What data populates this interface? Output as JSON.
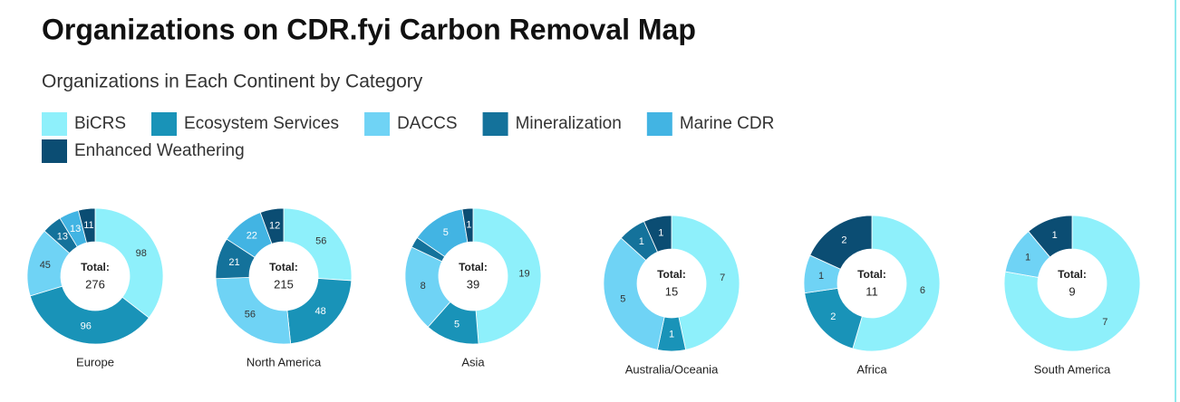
{
  "chart_data": {
    "type": "donut",
    "title": "Organizations on CDR.fyi Carbon Removal Map",
    "subtitle": "Organizations in Each Continent by Category",
    "total_label": "Total:",
    "series": [
      {
        "name": "BiCRS",
        "color": "#8ef0fb"
      },
      {
        "name": "Ecosystem Services",
        "color": "#1993b8"
      },
      {
        "name": "DACCS",
        "color": "#6fd3f5"
      },
      {
        "name": "Mineralization",
        "color": "#14729b"
      },
      {
        "name": "Marine CDR",
        "color": "#42b4e3"
      },
      {
        "name": "Enhanced Weathering",
        "color": "#0b4d73"
      }
    ],
    "groups": [
      {
        "name": "Europe",
        "total": 276,
        "values": [
          98,
          96,
          45,
          13,
          13,
          11
        ]
      },
      {
        "name": "North America",
        "total": 215,
        "values": [
          56,
          48,
          56,
          21,
          22,
          12
        ]
      },
      {
        "name": "Asia",
        "total": 39,
        "values": [
          19,
          5,
          8,
          1,
          5,
          1
        ],
        "value_labels": [
          "19",
          "5",
          "8",
          null,
          "5",
          "1"
        ]
      },
      {
        "name": "Australia/Oceania",
        "total": 15,
        "values": [
          7,
          1,
          5,
          1,
          0,
          1
        ],
        "value_labels": [
          "7",
          "1",
          "5",
          "1",
          null,
          "1"
        ]
      },
      {
        "name": "Africa",
        "total": 11,
        "values": [
          6,
          2,
          1,
          0,
          0,
          2
        ],
        "value_labels": [
          "6",
          "2",
          "1",
          null,
          null,
          "2"
        ]
      },
      {
        "name": "South America",
        "total": 9,
        "values": [
          7,
          0,
          1,
          0,
          0,
          1
        ],
        "value_labels": [
          "7",
          null,
          "1",
          null,
          null,
          "1"
        ]
      }
    ]
  }
}
